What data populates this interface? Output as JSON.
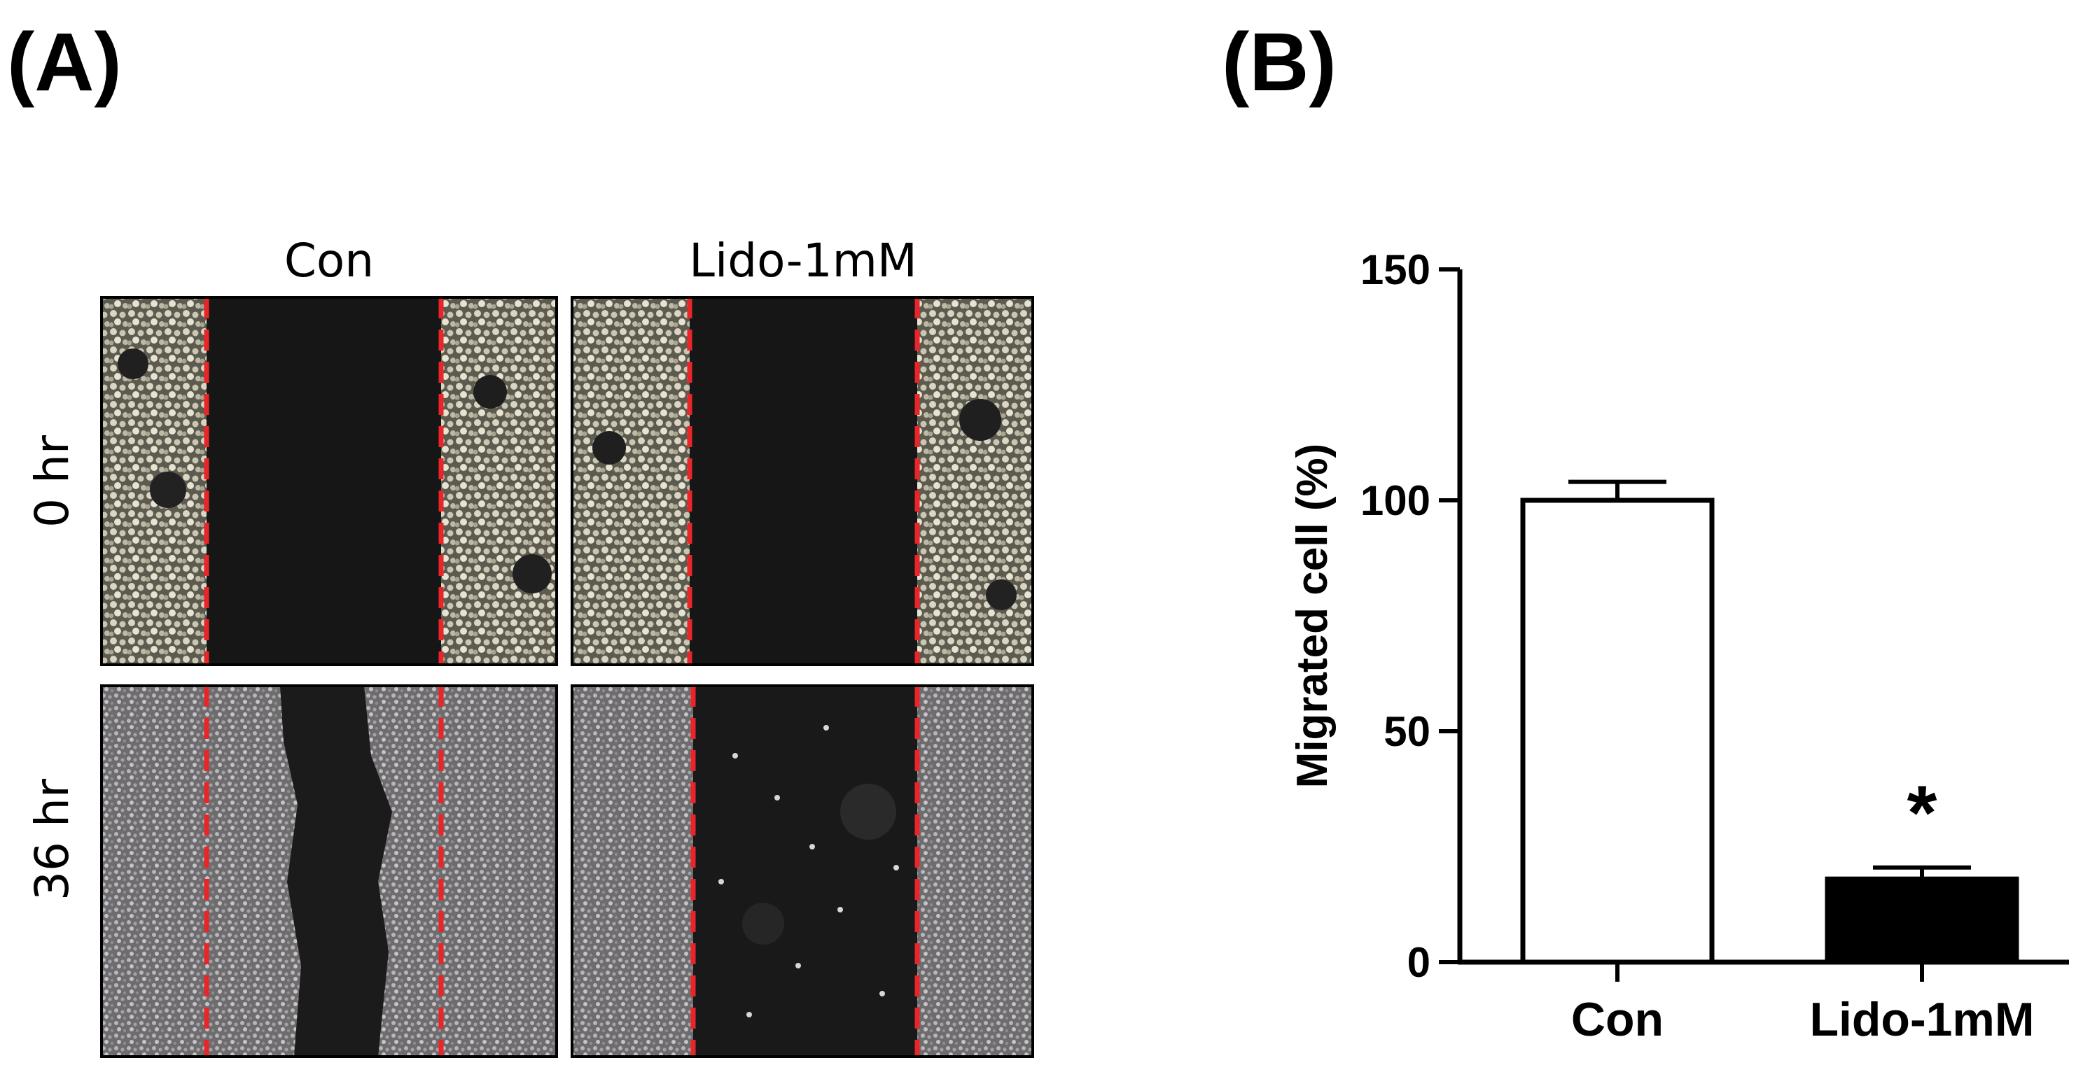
{
  "panel_a": {
    "label": "(A)",
    "columns": [
      "Con",
      "Lido-1mM"
    ],
    "rows": [
      "0 hr",
      "36 hr"
    ],
    "line_color": "#e8262a"
  },
  "panel_b": {
    "label": "(B)"
  },
  "chart_data": {
    "type": "bar",
    "title": "",
    "xlabel": "",
    "ylabel": "Migrated cell (%)",
    "categories": [
      "Con",
      "Lido-1mM"
    ],
    "values": [
      100,
      18
    ],
    "errors": [
      4,
      2.5
    ],
    "bar_fills": [
      "#ffffff",
      "#000000"
    ],
    "ylim": [
      0,
      150
    ],
    "yticks": [
      0,
      50,
      100,
      150
    ],
    "annotations": [
      {
        "category": "Lido-1mM",
        "text": "*"
      }
    ],
    "grid": false,
    "legend": "none"
  }
}
